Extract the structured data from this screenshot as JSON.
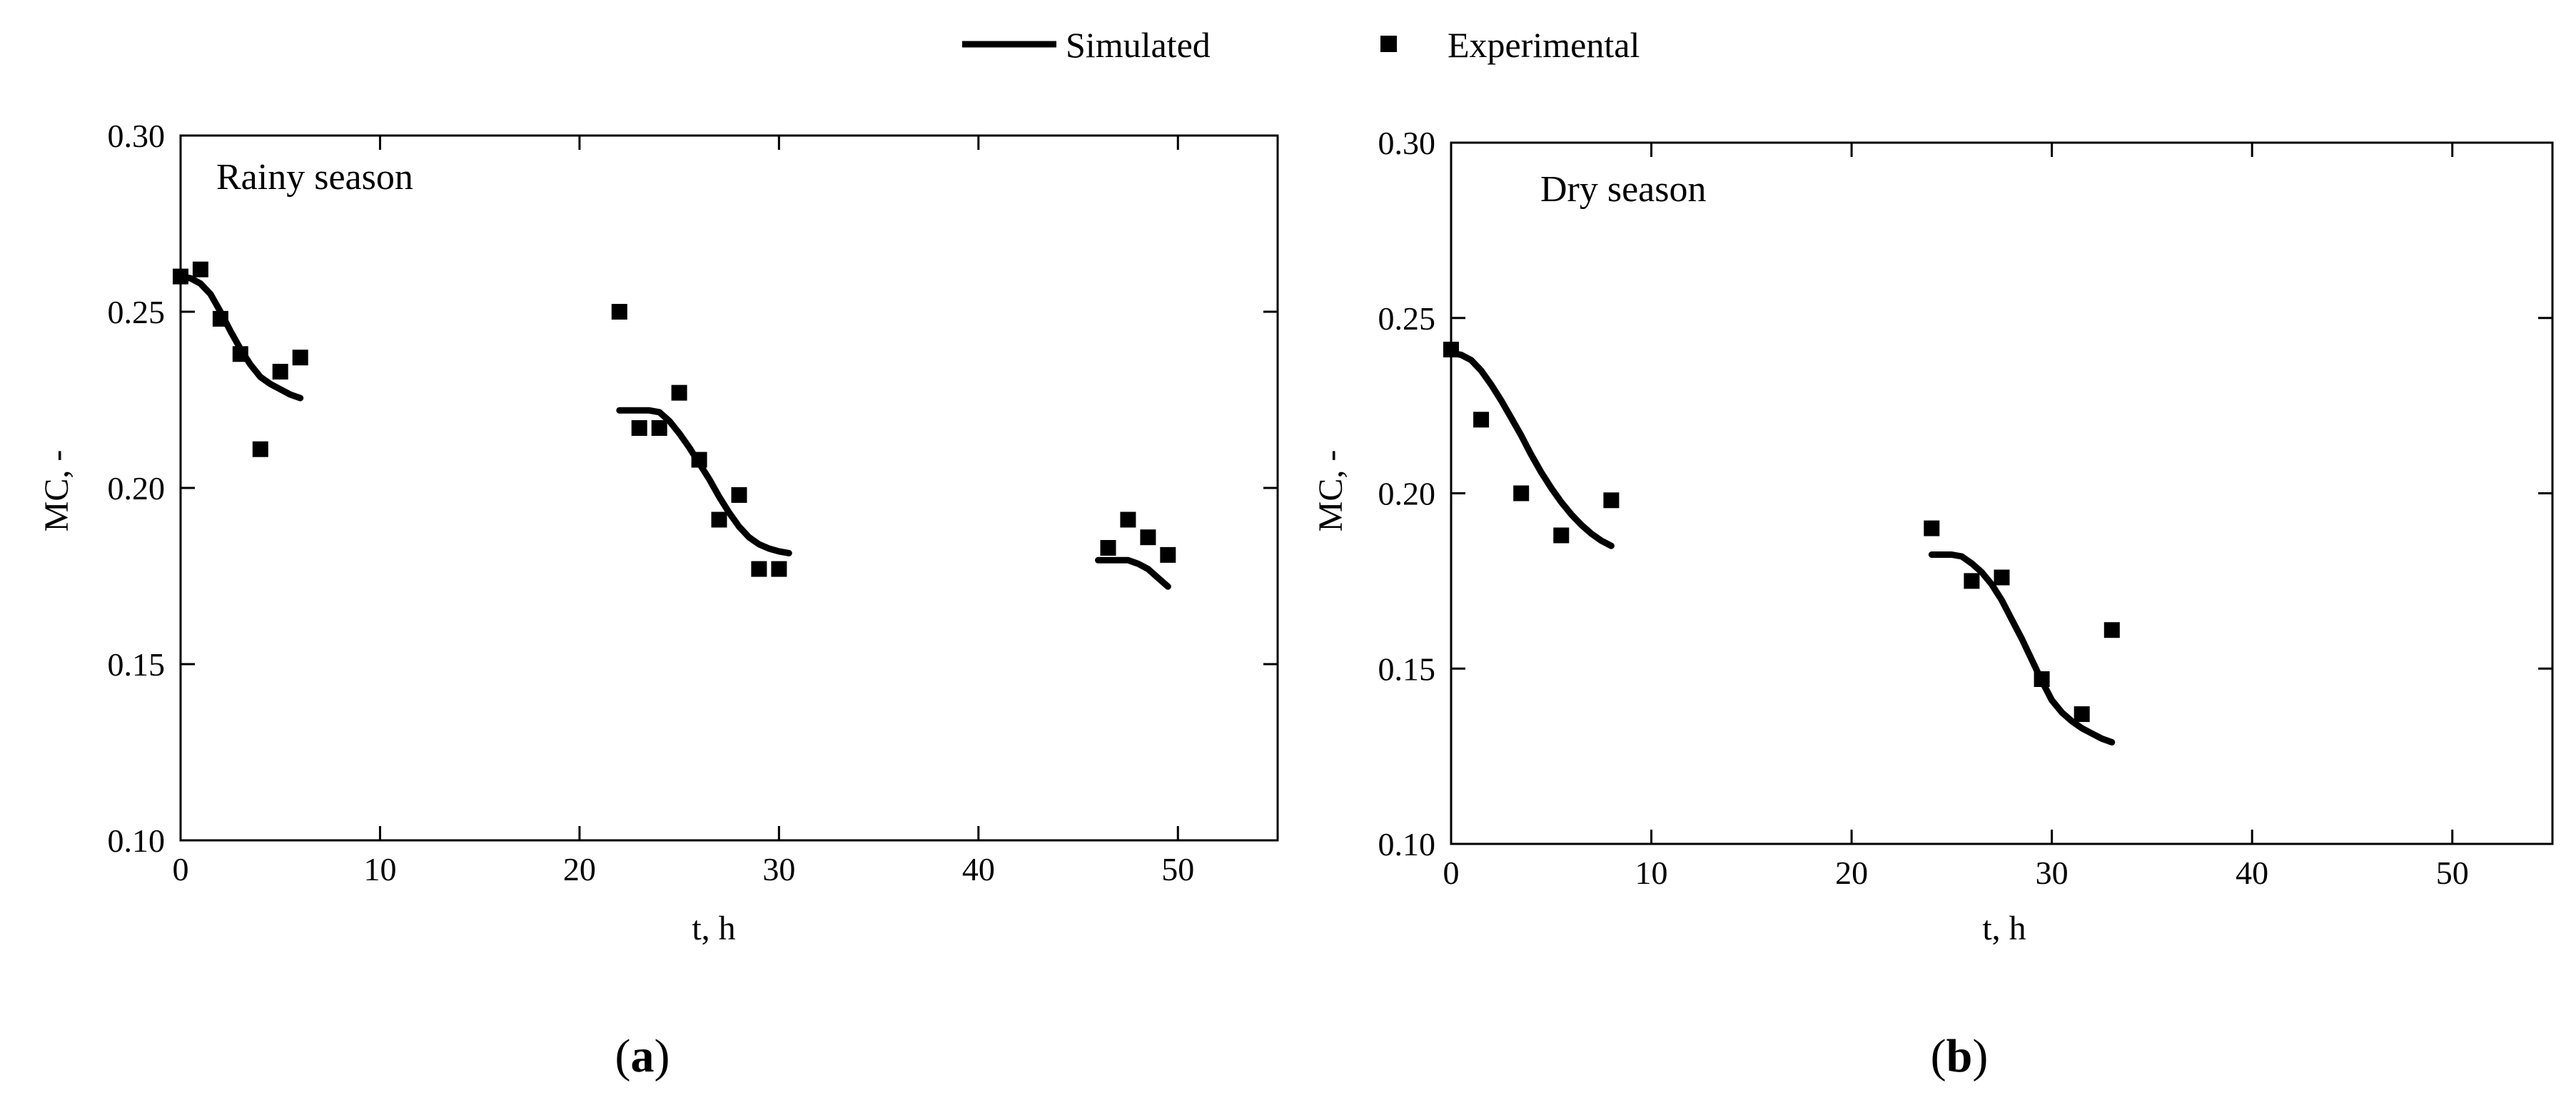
{
  "legend": {
    "simulated_label": "Simulated",
    "experimental_label": "Experimental"
  },
  "colors": {
    "ink": "#000000",
    "background": "#ffffff"
  },
  "chart_data": [
    {
      "type": "line",
      "panel_label": {
        "prefix": "(",
        "letter": "a",
        "suffix": ")"
      },
      "annotation": "Rainy season",
      "xlabel": "t, h",
      "ylabel": "MC, -",
      "xlim": [
        0,
        55
      ],
      "ylim": [
        0.1,
        0.3
      ],
      "xticks": [
        0,
        10,
        20,
        30,
        40,
        50
      ],
      "yticks": [
        0.1,
        0.15,
        0.2,
        0.25,
        0.3
      ],
      "ytick_labels": [
        "0.10",
        "0.15",
        "0.20",
        "0.25",
        "0.30"
      ],
      "series": [
        {
          "name": "Simulated",
          "kind": "line",
          "segments": [
            {
              "x": [
                0,
                0.5,
                1,
                1.5,
                2,
                2.5,
                3,
                3.5,
                4,
                4.5,
                5,
                5.5,
                6
              ],
              "y": [
                0.26,
                0.2595,
                0.258,
                0.255,
                0.25,
                0.2445,
                0.2395,
                0.235,
                0.2315,
                0.2295,
                0.228,
                0.2265,
                0.2255
              ]
            },
            {
              "x": [
                22,
                22.5,
                23,
                23.5,
                24,
                24.5,
                25,
                25.5,
                26,
                26.5,
                27,
                27.5,
                28,
                28.5,
                29,
                29.5,
                30,
                30.5
              ],
              "y": [
                0.222,
                0.222,
                0.222,
                0.222,
                0.2215,
                0.219,
                0.2155,
                0.2115,
                0.207,
                0.2025,
                0.1975,
                0.193,
                0.189,
                0.186,
                0.184,
                0.1828,
                0.182,
                0.1815
              ]
            },
            {
              "x": [
                46,
                46.5,
                47,
                47.5,
                48,
                48.5,
                49,
                49.5
              ],
              "y": [
                0.1795,
                0.1795,
                0.1795,
                0.1795,
                0.1785,
                0.177,
                0.1745,
                0.172
              ]
            }
          ]
        },
        {
          "name": "Experimental",
          "kind": "scatter",
          "x": [
            0,
            1,
            2,
            3,
            4,
            5,
            6,
            22,
            23,
            24,
            25,
            26,
            27,
            28,
            29,
            30,
            46.5,
            47.5,
            48.5,
            49.5
          ],
          "y": [
            0.26,
            0.262,
            0.248,
            0.238,
            0.211,
            0.233,
            0.237,
            0.25,
            0.217,
            0.217,
            0.227,
            0.208,
            0.191,
            0.198,
            0.177,
            0.177,
            0.183,
            0.191,
            0.186,
            0.181
          ]
        }
      ]
    },
    {
      "type": "line",
      "panel_label": {
        "prefix": "(",
        "letter": "b",
        "suffix": ")"
      },
      "annotation": "Dry season",
      "xlabel": "t, h",
      "ylabel": "MC, -",
      "xlim": [
        0,
        55
      ],
      "ylim": [
        0.1,
        0.3
      ],
      "xticks": [
        0,
        10,
        20,
        30,
        40,
        50
      ],
      "yticks": [
        0.1,
        0.15,
        0.2,
        0.25,
        0.3
      ],
      "ytick_labels": [
        "0.10",
        "0.15",
        "0.20",
        "0.25",
        "0.30"
      ],
      "series": [
        {
          "name": "Simulated",
          "kind": "line",
          "segments": [
            {
              "x": [
                0,
                0.5,
                1,
                1.5,
                2,
                2.5,
                3,
                3.5,
                4,
                4.5,
                5,
                5.5,
                6,
                6.5,
                7,
                7.5,
                8
              ],
              "y": [
                0.24,
                0.2395,
                0.238,
                0.235,
                0.231,
                0.2265,
                0.2215,
                0.2165,
                0.211,
                0.206,
                0.2015,
                0.1975,
                0.194,
                0.191,
                0.1885,
                0.1865,
                0.185
              ]
            },
            {
              "x": [
                24,
                24.5,
                25,
                25.5,
                26,
                26.5,
                27,
                27.5,
                28,
                28.5,
                29,
                29.5,
                30,
                30.5,
                31,
                31.5,
                32,
                32.5,
                33
              ],
              "y": [
                0.1825,
                0.1825,
                0.1825,
                0.182,
                0.18,
                0.1775,
                0.174,
                0.1695,
                0.164,
                0.1585,
                0.1525,
                0.1465,
                0.141,
                0.1375,
                0.135,
                0.133,
                0.1315,
                0.13,
                0.129
              ]
            }
          ]
        },
        {
          "name": "Experimental",
          "kind": "scatter",
          "x": [
            0,
            1.5,
            3.5,
            5.5,
            8,
            24,
            26,
            27.5,
            29.5,
            31.5,
            33
          ],
          "y": [
            0.241,
            0.221,
            0.2,
            0.188,
            0.198,
            0.19,
            0.175,
            0.176,
            0.147,
            0.137,
            0.161
          ]
        }
      ]
    }
  ]
}
